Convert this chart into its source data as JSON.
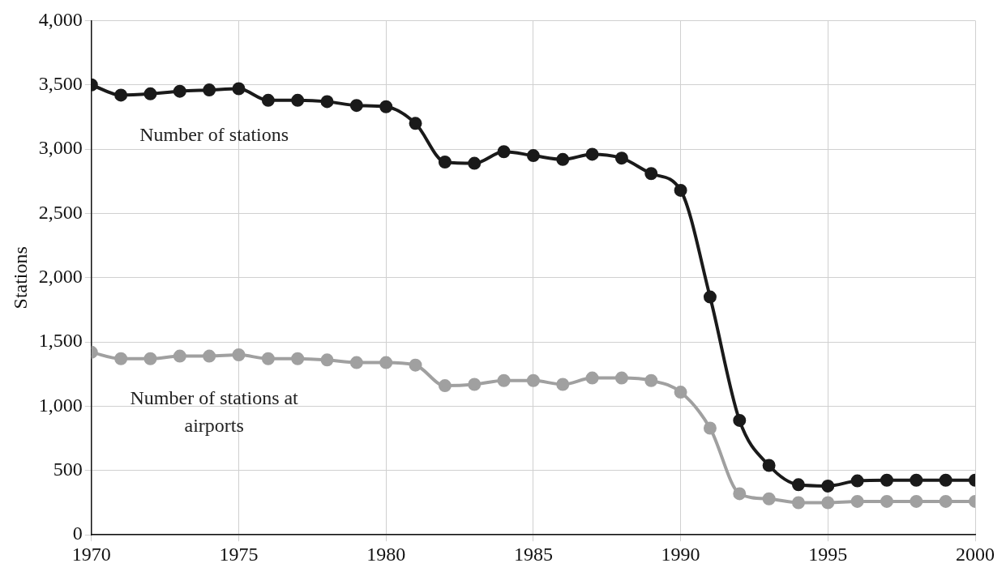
{
  "chart_data": {
    "type": "line",
    "ylabel": "Stations",
    "x": [
      1970,
      1971,
      1972,
      1973,
      1974,
      1975,
      1976,
      1977,
      1978,
      1979,
      1980,
      1981,
      1982,
      1983,
      1984,
      1985,
      1986,
      1987,
      1988,
      1989,
      1990,
      1991,
      1992,
      1993,
      1994,
      1995,
      1996,
      1997,
      1998,
      1999,
      2000
    ],
    "series": [
      {
        "name": "Number of stations",
        "color": "#1a1a1a",
        "values": [
          3500,
          3420,
          3430,
          3450,
          3460,
          3470,
          3380,
          3380,
          3370,
          3340,
          3330,
          3200,
          2900,
          2890,
          2980,
          2950,
          2920,
          2960,
          2930,
          2810,
          2680,
          1850,
          890,
          540,
          390,
          380,
          420,
          425,
          425,
          425,
          425
        ]
      },
      {
        "name": "Number of stations at airports",
        "color": "#a0a0a0",
        "values": [
          1420,
          1370,
          1370,
          1390,
          1390,
          1400,
          1370,
          1370,
          1360,
          1340,
          1340,
          1320,
          1160,
          1170,
          1200,
          1200,
          1170,
          1220,
          1220,
          1200,
          1110,
          830,
          320,
          280,
          250,
          250,
          260,
          260,
          260,
          260,
          260
        ]
      }
    ],
    "xlim": [
      1970,
      2000
    ],
    "xticks": [
      1970,
      1975,
      1980,
      1985,
      1990,
      1995,
      2000
    ],
    "ylim": [
      0,
      4000
    ],
    "yticks": [
      0,
      500,
      {
        "value": 1000,
        "label": "1,000"
      },
      {
        "value": 1500,
        "label": "1,500"
      },
      {
        "value": 2000,
        "label": "2,000"
      },
      {
        "value": 2500,
        "label": "2,500"
      },
      {
        "value": 3000,
        "label": "3,000"
      },
      {
        "value": 3500,
        "label": "3,500"
      },
      {
        "value": 4000,
        "label": "4,000"
      }
    ],
    "grid": true,
    "legend": false,
    "marker": "circle",
    "line_style": "solid"
  }
}
